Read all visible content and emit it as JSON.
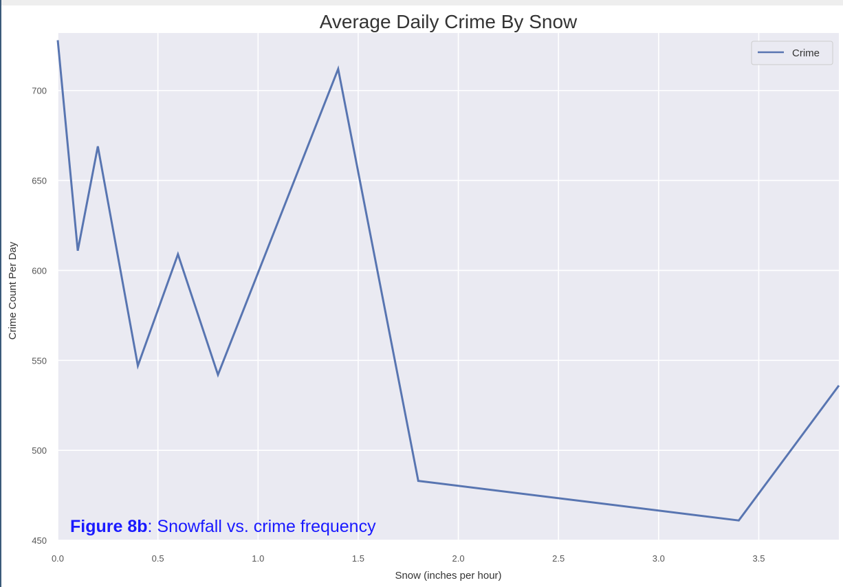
{
  "chart_data": {
    "type": "line",
    "title": "Average Daily Crime By Snow",
    "xlabel": "Snow (inches per hour)",
    "ylabel": "Crime Count Per Day",
    "xlim": [
      0.0,
      3.9
    ],
    "ylim": [
      450,
      732
    ],
    "xticks": [
      0.0,
      0.5,
      1.0,
      1.5,
      2.0,
      2.5,
      3.0,
      3.5
    ],
    "xtick_labels": [
      "0.0",
      "0.5",
      "1.0",
      "1.5",
      "2.0",
      "2.5",
      "3.0",
      "3.5"
    ],
    "yticks": [
      450,
      500,
      550,
      600,
      650,
      700
    ],
    "ytick_labels": [
      "450",
      "500",
      "550",
      "600",
      "650",
      "700"
    ],
    "grid": true,
    "legend_position": "top-right",
    "series": [
      {
        "name": "Crime",
        "color": "#5875b1",
        "x": [
          0.0,
          0.1,
          0.2,
          0.4,
          0.6,
          0.8,
          1.4,
          1.8,
          3.4,
          3.9
        ],
        "y": [
          728,
          611,
          669,
          547,
          609,
          542,
          712,
          483,
          461,
          536
        ]
      }
    ]
  },
  "caption": {
    "label": "Figure 8b",
    "text": ": Snowfall vs. crime frequency",
    "color": "#1a1aff"
  },
  "colors": {
    "plot_background": "#eaeaf2",
    "grid": "#ffffff",
    "line": "#5875b1"
  }
}
